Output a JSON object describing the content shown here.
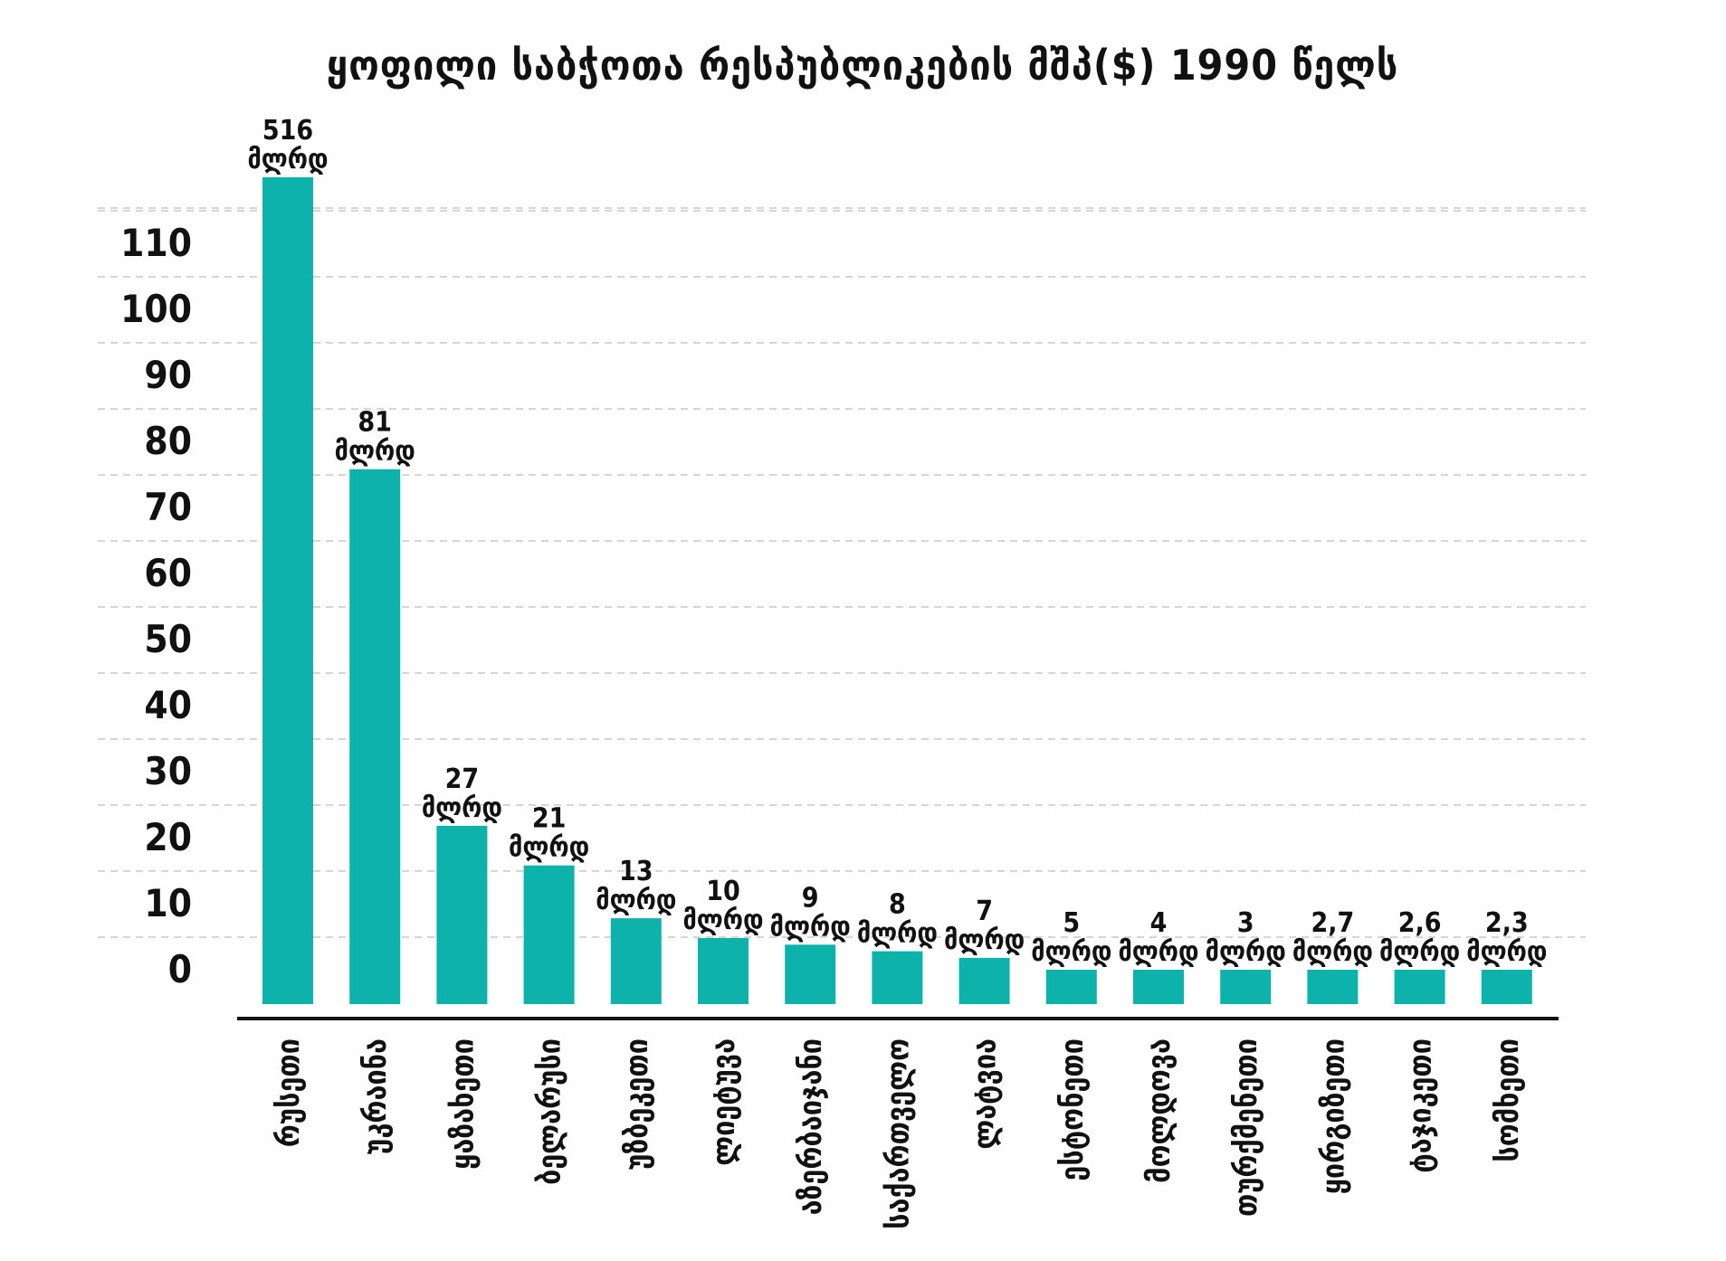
{
  "chart_data": {
    "type": "bar",
    "title": "ყოფილი საბჭოთა რესპუბლიკების მშპ($) 1990 წელს",
    "xlabel": "",
    "ylabel": "",
    "ylim": [
      0,
      120
    ],
    "yticks": [
      "0",
      "10",
      "20",
      "30",
      "40",
      "50",
      "60",
      "70",
      "80",
      "90",
      "100",
      "110"
    ],
    "grid": true,
    "legend": "none",
    "bar_color": "#0db3aa",
    "categories": [
      "რუსეთი",
      "უკრაინა",
      "ყაზახეთი",
      "ბელარუსი",
      "უზბეკეთი",
      "ლიეტუვა",
      "აზერბაიჯანი",
      "საქართველო",
      "ლატვია",
      "ესტონეთი",
      "მოლდოვა",
      "თურქმენეთი",
      "ყირგიზეთი",
      "ტაჯიკეთი",
      "სომხეთი"
    ],
    "values": [
      516,
      81,
      27,
      21,
      13,
      10,
      9,
      8,
      7,
      5,
      4,
      3,
      2.7,
      2.6,
      2.3
    ],
    "value_labels": [
      "516",
      "81",
      "27",
      "21",
      "13",
      "10",
      "9",
      "8",
      "7",
      "5",
      "4",
      "3",
      "2,7",
      "2,6",
      "2,3"
    ],
    "unit_label": "მლრდ"
  }
}
